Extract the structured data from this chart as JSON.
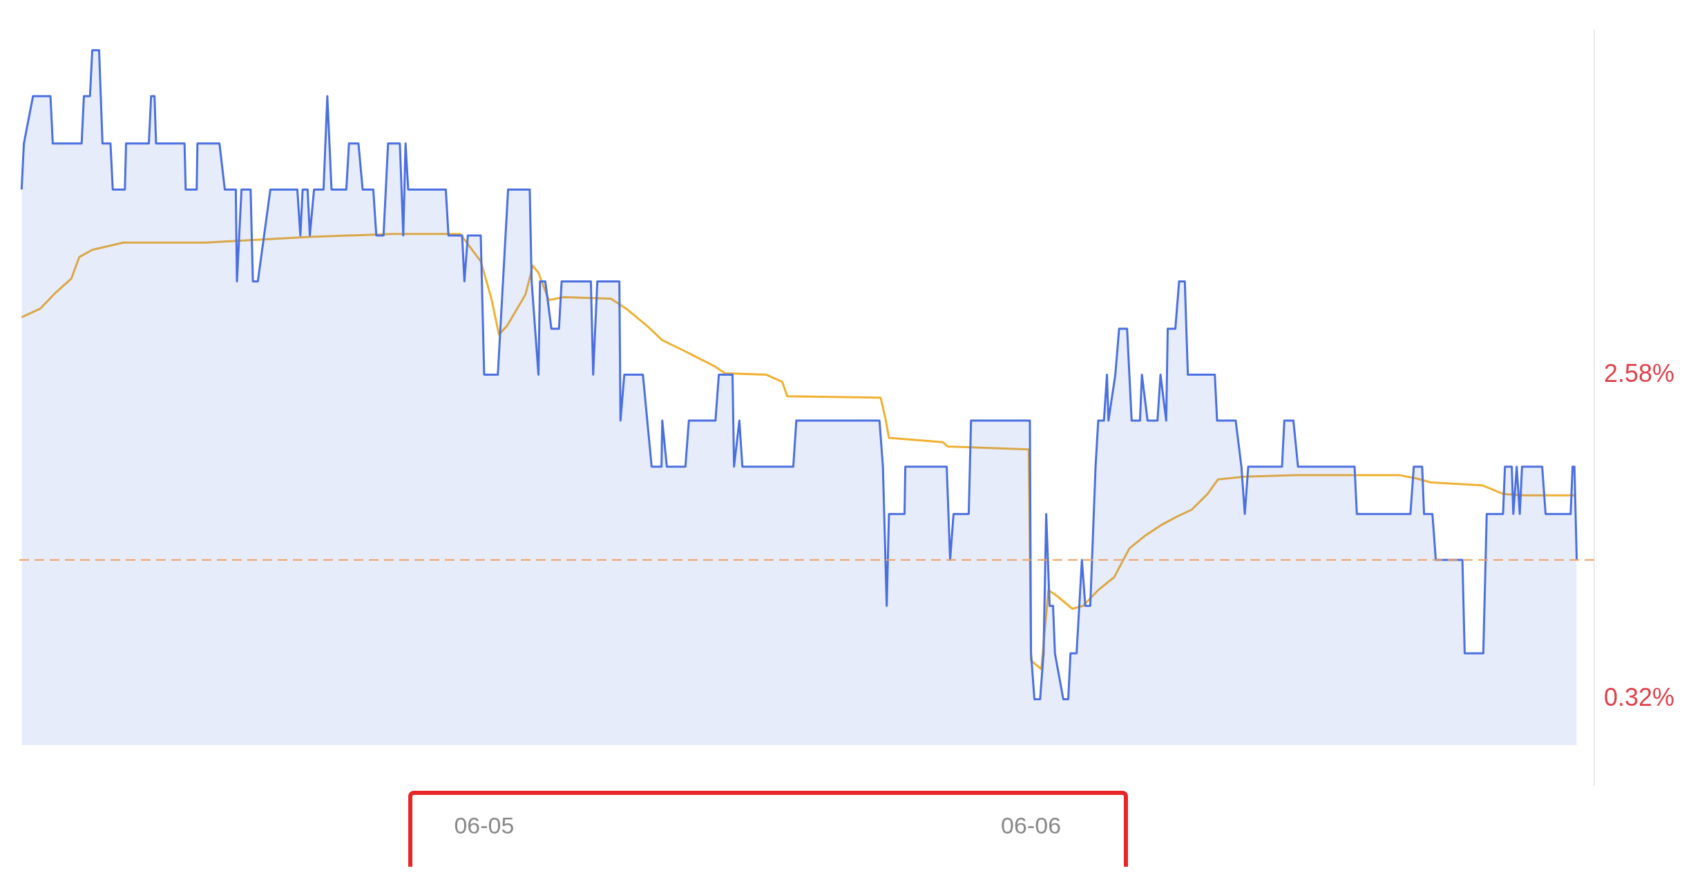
{
  "chart_data": {
    "type": "line",
    "xlim": [
      "--06-04T03:36",
      "--06-07T00:43"
    ],
    "xticks": [
      {
        "value": "--06-05",
        "label": "06-05"
      },
      {
        "value": "--06-06",
        "label": "06-06"
      }
    ],
    "ylim": [
      -0.28,
      4.98
    ],
    "yticks": [
      {
        "value": 0.32,
        "label": "0.32%"
      },
      {
        "value": 2.58,
        "label": "2.58%"
      }
    ],
    "grid": false,
    "legend": false,
    "ref_lines": [
      {
        "axis": "y",
        "value": 1.29,
        "color": "#f0a060",
        "line_style": "dashed"
      }
    ],
    "series": [
      {
        "type": "area",
        "color": "#4a6fe0",
        "x": [
          "--06-04T03:42",
          "--06-04T03:48",
          "--06-04T04:12",
          "--06-04T04:58",
          "--06-04T05:04",
          "--06-04T06:20",
          "--06-04T06:26",
          "--06-04T06:42",
          "--06-04T06:48",
          "--06-04T07:06",
          "--06-04T07:15",
          "--06-04T07:36",
          "--06-04T07:42",
          "--06-04T08:14",
          "--06-04T08:17",
          "--06-04T09:17",
          "--06-04T09:23",
          "--06-04T09:32",
          "--06-04T09:36",
          "--06-04T10:51",
          "--06-04T10:54",
          "--06-04T11:23",
          "--06-04T11:25",
          "--06-04T12:23",
          "--06-04T12:37",
          "--06-04T13:06",
          "--06-04T13:09",
          "--06-04T13:21",
          "--06-04T13:45",
          "--06-04T13:51",
          "--06-04T14:04",
          "--06-04T14:37",
          "--06-04T15:48",
          "--06-04T15:56",
          "--06-04T16:02",
          "--06-04T16:15",
          "--06-04T16:21",
          "--06-04T16:32",
          "--06-04T16:57",
          "--06-04T17:07",
          "--06-04T17:18",
          "--06-04T17:57",
          "--06-04T18:04",
          "--06-04T18:29",
          "--06-04T18:40",
          "--06-04T19:08",
          "--06-04T19:16",
          "--06-04T19:35",
          "--06-04T19:47",
          "--06-04T20:18",
          "--06-04T20:27",
          "--06-04T20:33",
          "--06-04T20:40",
          "--06-04T22:19",
          "--06-04T22:26",
          "--06-04T23:02",
          "--06-04T23:08",
          "--06-04T23:17",
          "--06-04T23:51",
          "--06-05T00:00",
          "--06-05T00:36",
          "--06-05T01:03",
          "--06-05T02:00",
          "--06-05T02:05",
          "--06-05T02:23",
          "--06-05T02:27",
          "--06-05T02:41",
          "--06-05T02:57",
          "--06-05T03:17",
          "--06-05T03:24",
          "--06-05T04:41",
          "--06-05T04:47",
          "--06-05T04:58",
          "--06-05T05:56",
          "--06-05T05:59",
          "--06-05T06:09",
          "--06-05T06:58",
          "--06-05T07:21",
          "--06-05T07:47",
          "--06-05T07:49",
          "--06-05T08:01",
          "--06-05T08:50",
          "--06-05T08:59",
          "--06-05T10:09",
          "--06-05T10:18",
          "--06-05T10:54",
          "--06-05T10:58",
          "--06-05T11:12",
          "--06-05T11:20",
          "--06-05T13:34",
          "--06-05T13:42",
          "--06-05T17:21",
          "--06-05T17:30",
          "--06-05T17:40",
          "--06-05T17:46",
          "--06-05T18:27",
          "--06-05T18:29",
          "--06-05T20:18",
          "--06-05T20:27",
          "--06-05T20:36",
          "--06-05T21:16",
          "--06-05T21:22",
          "--06-05T23:57",
          "--06-06T00:00",
          "--06-06T00:09",
          "--06-06T00:24",
          "--06-06T00:33",
          "--06-06T00:40",
          "--06-06T00:49",
          "--06-06T00:58",
          "--06-06T01:03",
          "--06-06T01:25",
          "--06-06T01:38",
          "--06-06T01:44",
          "--06-06T02:00",
          "--06-06T02:14",
          "--06-06T02:23",
          "--06-06T02:36",
          "--06-06T02:50",
          "--06-06T02:57",
          "--06-06T03:12",
          "--06-06T03:20",
          "--06-06T03:24",
          "--06-06T03:42",
          "--06-06T03:52",
          "--06-06T04:13",
          "--06-06T04:25",
          "--06-06T04:47",
          "--06-06T04:52",
          "--06-06T05:07",
          "--06-06T05:33",
          "--06-06T05:41",
          "--06-06T05:56",
          "--06-06T06:00",
          "--06-06T06:20",
          "--06-06T06:30",
          "--06-06T06:45",
          "--06-06T06:53",
          "--06-06T08:04",
          "--06-06T08:10",
          "--06-06T08:59",
          "--06-06T09:14",
          "--06-06T09:23",
          "--06-06T09:32",
          "--06-06T11:01",
          "--06-06T11:07",
          "--06-06T11:31",
          "--06-06T11:43",
          "--06-06T14:12",
          "--06-06T14:18",
          "--06-06T16:39",
          "--06-06T16:48",
          "--06-06T17:10",
          "--06-06T17:15",
          "--06-06T17:37",
          "--06-06T17:46",
          "--06-06T18:56",
          "--06-06T19:02",
          "--06-06T19:51",
          "--06-06T20:00",
          "--06-06T20:43",
          "--06-06T20:48",
          "--06-06T21:06",
          "--06-06T21:10",
          "--06-06T21:19",
          "--06-06T21:27",
          "--06-06T21:33",
          "--06-06T22:26",
          "--06-06T22:35",
          "--06-06T23:41",
          "--06-06T23:46",
          "--06-06T23:51",
          "--06-06T23:57"
        ],
        "values": [
          3.87,
          4.19,
          4.52,
          4.52,
          4.19,
          4.19,
          4.52,
          4.52,
          4.84,
          4.84,
          4.19,
          4.19,
          3.87,
          3.87,
          4.19,
          4.19,
          4.52,
          4.52,
          4.19,
          4.19,
          3.87,
          3.87,
          4.19,
          4.19,
          3.87,
          3.87,
          3.23,
          3.87,
          3.87,
          3.23,
          3.23,
          3.87,
          3.87,
          3.55,
          3.87,
          3.87,
          3.55,
          3.87,
          3.87,
          4.52,
          3.87,
          3.87,
          4.19,
          4.19,
          3.87,
          3.87,
          3.55,
          3.55,
          4.19,
          4.19,
          3.55,
          4.19,
          3.87,
          3.87,
          3.55,
          3.55,
          3.23,
          3.55,
          3.55,
          2.58,
          2.58,
          3.87,
          3.87,
          3.23,
          2.58,
          3.23,
          3.23,
          2.9,
          2.9,
          3.23,
          3.23,
          2.58,
          3.23,
          3.23,
          2.26,
          2.58,
          2.58,
          1.94,
          1.94,
          2.26,
          1.94,
          1.94,
          2.26,
          2.26,
          2.58,
          2.58,
          1.94,
          2.26,
          1.94,
          1.94,
          2.26,
          2.26,
          1.94,
          0.97,
          1.61,
          1.61,
          1.94,
          1.94,
          1.29,
          1.61,
          1.61,
          2.26,
          2.26,
          0.64,
          0.32,
          0.32,
          0.64,
          1.61,
          0.97,
          0.97,
          0.64,
          0.32,
          0.32,
          0.64,
          0.64,
          1.29,
          0.97,
          0.97,
          1.94,
          2.26,
          2.26,
          2.58,
          2.26,
          2.58,
          2.9,
          2.9,
          2.26,
          2.26,
          2.58,
          2.26,
          2.26,
          2.58,
          2.26,
          2.9,
          2.9,
          3.23,
          3.23,
          2.58,
          2.58,
          2.26,
          2.26,
          1.94,
          1.61,
          1.94,
          1.94,
          2.26,
          2.26,
          1.94,
          1.94,
          1.61,
          1.61,
          1.94,
          1.94,
          1.61,
          1.61,
          1.29,
          1.29,
          0.64,
          0.64,
          1.61,
          1.61,
          1.94,
          1.94,
          1.61,
          1.94,
          1.61,
          1.94,
          1.94,
          1.61,
          1.61,
          1.94,
          1.94,
          1.29
        ]
      },
      {
        "type": "line",
        "color": "#f0b030",
        "x": [
          "--06-04T03:42",
          "--06-04T04:31",
          "--06-04T05:11",
          "--06-04T05:53",
          "--06-04T06:14",
          "--06-04T06:48",
          "--06-04T08:10",
          "--06-04T11:47",
          "--06-04T16:21",
          "--06-04T20:00",
          "--06-04T22:57",
          "--06-04T23:51",
          "--06-05T00:19",
          "--06-05T00:39",
          "--06-05T01:00",
          "--06-05T01:49",
          "--06-05T02:08",
          "--06-05T02:23",
          "--06-05T02:50",
          "--06-05T03:30",
          "--06-05T05:34",
          "--06-05T06:14",
          "--06-05T07:09",
          "--06-05T07:49",
          "--06-05T08:44",
          "--06-05T10:06",
          "--06-05T10:34",
          "--06-05T12:23",
          "--06-05T13:05",
          "--06-05T13:18",
          "--06-05T17:24",
          "--06-05T17:37",
          "--06-05T17:46",
          "--06-05T20:08",
          "--06-05T20:21",
          "--06-05T23:54",
          "--06-06T00:00",
          "--06-06T00:27",
          "--06-06T00:46",
          "--06-06T01:08",
          "--06-06T01:49",
          "--06-06T02:17",
          "--06-06T02:57",
          "--06-06T03:39",
          "--06-06T04:19",
          "--06-06T05:01",
          "--06-06T05:41",
          "--06-06T06:23",
          "--06-06T07:03",
          "--06-06T07:45",
          "--06-06T08:12",
          "--06-06T09:20",
          "--06-06T11:37",
          "--06-06T16:11",
          "--06-06T16:51",
          "--06-06T17:33",
          "--06-06T19:48",
          "--06-06T20:43",
          "--06-06T21:37",
          "--06-06T23:54"
        ],
        "values": [
          2.98,
          3.04,
          3.15,
          3.25,
          3.4,
          3.45,
          3.5,
          3.5,
          3.54,
          3.56,
          3.56,
          3.37,
          3.11,
          2.86,
          2.92,
          3.14,
          3.34,
          3.29,
          3.1,
          3.12,
          3.11,
          3.04,
          2.92,
          2.82,
          2.75,
          2.64,
          2.59,
          2.58,
          2.53,
          2.43,
          2.42,
          2.27,
          2.14,
          2.11,
          2.08,
          2.06,
          0.59,
          0.53,
          1.08,
          1.04,
          0.95,
          0.97,
          1.08,
          1.17,
          1.37,
          1.46,
          1.53,
          1.59,
          1.64,
          1.75,
          1.85,
          1.87,
          1.88,
          1.88,
          1.86,
          1.83,
          1.81,
          1.75,
          1.74,
          1.74
        ]
      }
    ]
  }
}
